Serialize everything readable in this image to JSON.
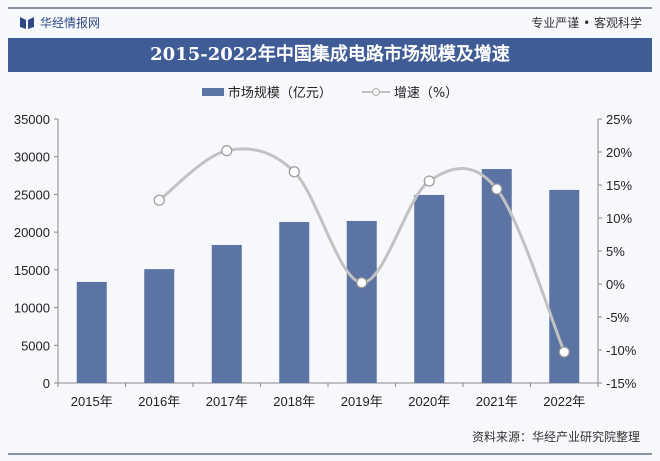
{
  "header": {
    "brand": "华经情报网",
    "motto": "专业严谨 • 客观科学"
  },
  "footer": {
    "source": "资料来源：华经产业研究院整理",
    "watermark": "华经产业研究院"
  },
  "colors": {
    "bar": "#5b74a3",
    "line": "#c2c2c2",
    "title_bg": "#3f5c96"
  },
  "chart_data": {
    "type": "bar+line",
    "title": "2015-2022年中国集成电路市场规模及增速",
    "categories": [
      "2015年",
      "2016年",
      "2017年",
      "2018年",
      "2019年",
      "2020年",
      "2021年",
      "2022年"
    ],
    "series": [
      {
        "name": "市场规模（亿元）",
        "type": "bar",
        "axis": "left",
        "values": [
          13400,
          15100,
          18300,
          21350,
          21480,
          24930,
          28370,
          25600
        ]
      },
      {
        "name": "增速（%）",
        "type": "line",
        "axis": "right",
        "values": [
          null,
          12.7,
          20.2,
          17.0,
          0.2,
          15.6,
          14.4,
          -10.3
        ]
      }
    ],
    "y_left": {
      "ylim": [
        0,
        35000
      ],
      "ticks": [
        "0",
        "5000",
        "10000",
        "15000",
        "20000",
        "25000",
        "30000",
        "35000"
      ]
    },
    "y_right": {
      "ylim": [
        -15,
        25
      ],
      "ticks": [
        "-15%",
        "-10%",
        "-5%",
        "0%",
        "5%",
        "10%",
        "15%",
        "20%",
        "25%"
      ]
    },
    "legend": "top",
    "grid": false
  }
}
